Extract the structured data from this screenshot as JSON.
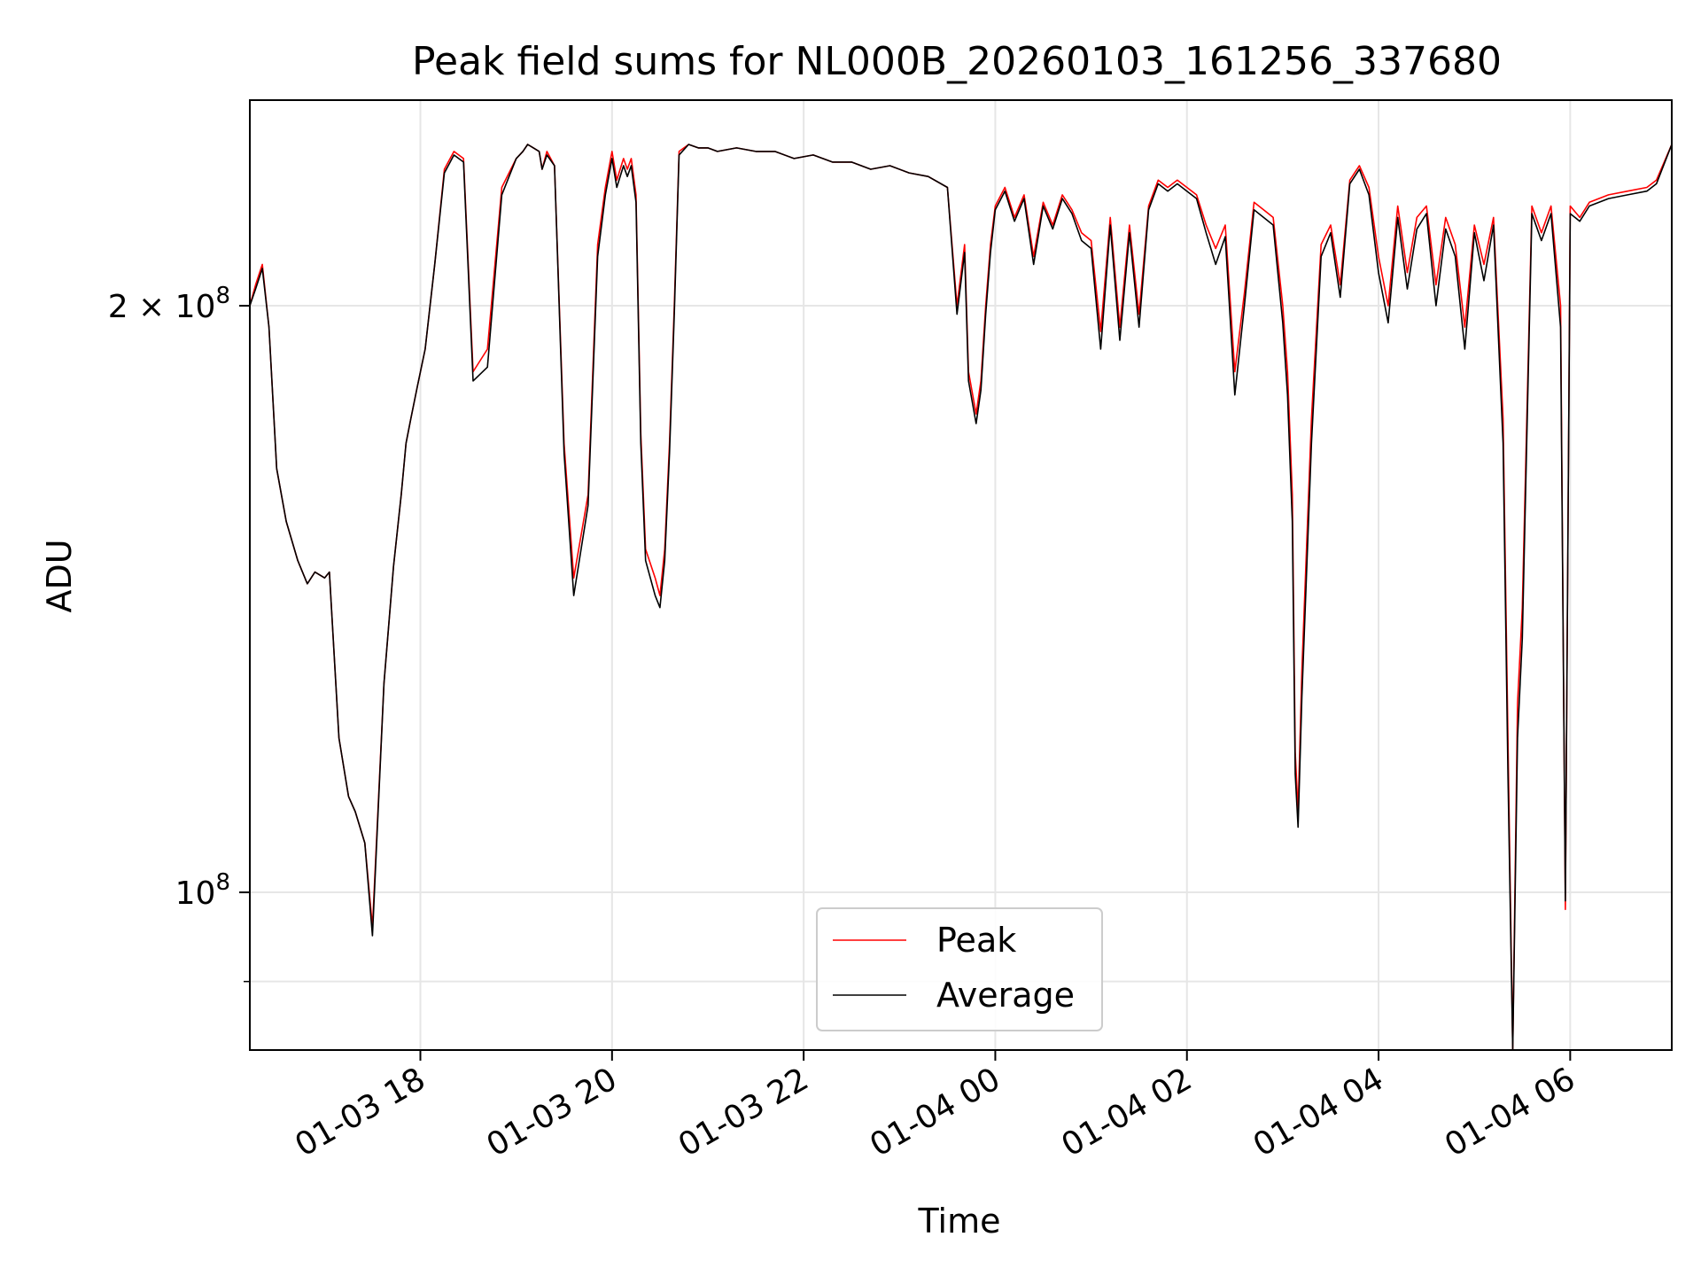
{
  "chart_data": {
    "type": "line",
    "title": "Peak field sums for NL000B_20260103_161256_337680",
    "xlabel": "Time",
    "ylabel": "ADU",
    "yscale": "log",
    "grid": true,
    "xlim": [
      16.22,
      31.06
    ],
    "ylim": [
      83000000,
      255000000
    ],
    "x_ticks": [
      {
        "value": 18,
        "label": "01-03 18"
      },
      {
        "value": 20,
        "label": "01-03 20"
      },
      {
        "value": 22,
        "label": "01-03 22"
      },
      {
        "value": 24,
        "label": "01-04 00"
      },
      {
        "value": 26,
        "label": "01-04 02"
      },
      {
        "value": 28,
        "label": "01-04 04"
      },
      {
        "value": 30,
        "label": "01-04 06"
      }
    ],
    "y_ticks": [
      {
        "value": 200000000,
        "label": "2×10^8",
        "base": "2 × 10",
        "exp": "8"
      },
      {
        "value": 100000000,
        "label": "10^8",
        "base": "10",
        "exp": "8"
      }
    ],
    "y_minor_ticks": [
      90000000
    ],
    "legend": {
      "position": "bottom-center",
      "entries": [
        "Peak",
        "Average"
      ]
    },
    "series": [
      {
        "name": "Peak",
        "color": "#ff0000",
        "x": [
          16.22,
          16.28,
          16.35,
          16.42,
          16.5,
          16.6,
          16.72,
          16.82,
          16.9,
          17.0,
          17.05,
          17.15,
          17.25,
          17.32,
          17.42,
          17.5,
          17.62,
          17.72,
          17.8,
          17.85,
          17.9,
          17.97,
          18.05,
          18.15,
          18.25,
          18.35,
          18.45,
          18.55,
          18.7,
          18.85,
          19.0,
          19.07,
          19.12,
          19.18,
          19.24,
          19.27,
          19.32,
          19.4,
          19.5,
          19.6,
          19.75,
          19.85,
          19.93,
          20.0,
          20.05,
          20.12,
          20.16,
          20.2,
          20.25,
          20.3,
          20.35,
          20.45,
          20.5,
          20.55,
          20.6,
          20.65,
          20.7,
          20.8,
          20.9,
          21.0,
          21.1,
          21.3,
          21.5,
          21.7,
          21.9,
          22.1,
          22.3,
          22.5,
          22.7,
          22.9,
          23.1,
          23.3,
          23.5,
          23.6,
          23.68,
          23.72,
          23.8,
          23.85,
          23.9,
          23.95,
          24.0,
          24.1,
          24.2,
          24.3,
          24.4,
          24.5,
          24.6,
          24.7,
          24.8,
          24.9,
          25.0,
          25.1,
          25.2,
          25.3,
          25.4,
          25.5,
          25.6,
          25.7,
          25.8,
          25.9,
          26.0,
          26.1,
          26.2,
          26.3,
          26.4,
          26.5,
          26.6,
          26.7,
          26.8,
          26.9,
          27.0,
          27.05,
          27.1,
          27.13,
          27.16,
          27.2,
          27.3,
          27.4,
          27.5,
          27.6,
          27.7,
          27.8,
          27.9,
          28.0,
          28.1,
          28.2,
          28.3,
          28.4,
          28.5,
          28.6,
          28.7,
          28.8,
          28.9,
          29.0,
          29.1,
          29.2,
          29.3,
          29.35,
          29.4,
          29.45,
          29.5,
          29.6,
          29.7,
          29.8,
          29.9,
          29.95,
          30.0,
          30.1,
          30.2,
          30.4,
          30.6,
          30.8,
          30.9,
          31.06
        ],
        "y": [
          200000000,
          205000000,
          210000000,
          195000000,
          165000000,
          155000000,
          148000000,
          144000000,
          146000000,
          145000000,
          146000000,
          120000000,
          112000000,
          110000000,
          106000000,
          96000000,
          128000000,
          147000000,
          160000000,
          170000000,
          175000000,
          182000000,
          190000000,
          210000000,
          235000000,
          240000000,
          238000000,
          185000000,
          190000000,
          230000000,
          238000000,
          240000000,
          242000000,
          241000000,
          240000000,
          235000000,
          240000000,
          236000000,
          170000000,
          145000000,
          160000000,
          215000000,
          230000000,
          240000000,
          232000000,
          238000000,
          235000000,
          238000000,
          228000000,
          172000000,
          150000000,
          145000000,
          142000000,
          150000000,
          170000000,
          200000000,
          240000000,
          242000000,
          241000000,
          241000000,
          240000000,
          241000000,
          240000000,
          240000000,
          238000000,
          239000000,
          237000000,
          237000000,
          235000000,
          236000000,
          234000000,
          233000000,
          230000000,
          200000000,
          215000000,
          185000000,
          176000000,
          183000000,
          200000000,
          215000000,
          225000000,
          230000000,
          222000000,
          228000000,
          212000000,
          226000000,
          220000000,
          228000000,
          224000000,
          218000000,
          216000000,
          194000000,
          222000000,
          195000000,
          220000000,
          198000000,
          225000000,
          232000000,
          230000000,
          232000000,
          230000000,
          228000000,
          220000000,
          214000000,
          220000000,
          185000000,
          203000000,
          226000000,
          224000000,
          222000000,
          200000000,
          185000000,
          160000000,
          118000000,
          110000000,
          130000000,
          175000000,
          215000000,
          220000000,
          205000000,
          232000000,
          236000000,
          230000000,
          212000000,
          200000000,
          225000000,
          208000000,
          222000000,
          225000000,
          205000000,
          222000000,
          215000000,
          195000000,
          220000000,
          210000000,
          222000000,
          175000000,
          120000000,
          83000000,
          125000000,
          140000000,
          225000000,
          218000000,
          225000000,
          200000000,
          98000000,
          225000000,
          222000000,
          226000000,
          228000000,
          229000000,
          230000000,
          232000000,
          242000000
        ]
      },
      {
        "name": "Average",
        "color": "#000000",
        "x": [
          16.22,
          16.28,
          16.35,
          16.42,
          16.5,
          16.6,
          16.72,
          16.82,
          16.9,
          17.0,
          17.05,
          17.15,
          17.25,
          17.32,
          17.42,
          17.5,
          17.62,
          17.72,
          17.8,
          17.85,
          17.9,
          17.97,
          18.05,
          18.15,
          18.25,
          18.35,
          18.45,
          18.55,
          18.7,
          18.85,
          19.0,
          19.07,
          19.12,
          19.18,
          19.24,
          19.27,
          19.32,
          19.4,
          19.5,
          19.6,
          19.75,
          19.85,
          19.93,
          20.0,
          20.05,
          20.12,
          20.16,
          20.2,
          20.25,
          20.3,
          20.35,
          20.45,
          20.5,
          20.55,
          20.6,
          20.65,
          20.7,
          20.8,
          20.9,
          21.0,
          21.1,
          21.3,
          21.5,
          21.7,
          21.9,
          22.1,
          22.3,
          22.5,
          22.7,
          22.9,
          23.1,
          23.3,
          23.5,
          23.6,
          23.68,
          23.72,
          23.8,
          23.85,
          23.9,
          23.95,
          24.0,
          24.1,
          24.2,
          24.3,
          24.4,
          24.5,
          24.6,
          24.7,
          24.8,
          24.9,
          25.0,
          25.1,
          25.2,
          25.3,
          25.4,
          25.5,
          25.6,
          25.7,
          25.8,
          25.9,
          26.0,
          26.1,
          26.2,
          26.3,
          26.4,
          26.5,
          26.6,
          26.7,
          26.8,
          26.9,
          27.0,
          27.05,
          27.1,
          27.13,
          27.16,
          27.2,
          27.3,
          27.4,
          27.5,
          27.6,
          27.7,
          27.8,
          27.9,
          28.0,
          28.1,
          28.2,
          28.3,
          28.4,
          28.5,
          28.6,
          28.7,
          28.8,
          28.9,
          29.0,
          29.1,
          29.2,
          29.3,
          29.35,
          29.4,
          29.45,
          29.5,
          29.6,
          29.7,
          29.8,
          29.9,
          29.95,
          30.0,
          30.1,
          30.2,
          30.4,
          30.6,
          30.8,
          30.9,
          31.06
        ],
        "y": [
          200000000,
          204000000,
          209000000,
          195000000,
          165000000,
          155000000,
          148000000,
          144000000,
          146000000,
          145000000,
          146000000,
          120000000,
          112000000,
          110000000,
          106000000,
          95000000,
          128000000,
          147000000,
          160000000,
          170000000,
          175000000,
          182000000,
          190000000,
          210000000,
          234000000,
          239000000,
          237000000,
          183000000,
          186000000,
          228000000,
          238000000,
          240000000,
          242000000,
          241000000,
          240000000,
          235000000,
          239000000,
          236000000,
          168000000,
          142000000,
          158000000,
          212000000,
          228000000,
          238000000,
          230000000,
          236000000,
          233000000,
          236000000,
          226000000,
          170000000,
          148000000,
          142000000,
          140000000,
          148000000,
          168000000,
          198000000,
          239000000,
          242000000,
          241000000,
          241000000,
          240000000,
          241000000,
          240000000,
          240000000,
          238000000,
          239000000,
          237000000,
          237000000,
          235000000,
          236000000,
          234000000,
          233000000,
          230000000,
          198000000,
          213000000,
          183000000,
          174000000,
          181000000,
          198000000,
          213000000,
          224000000,
          229000000,
          221000000,
          227000000,
          210000000,
          225000000,
          219000000,
          227000000,
          223000000,
          216000000,
          214000000,
          190000000,
          220000000,
          192000000,
          218000000,
          195000000,
          224000000,
          231000000,
          229000000,
          231000000,
          229000000,
          227000000,
          218000000,
          210000000,
          217000000,
          180000000,
          200000000,
          224000000,
          222000000,
          220000000,
          196000000,
          180000000,
          155000000,
          115000000,
          108000000,
          126000000,
          170000000,
          212000000,
          218000000,
          202000000,
          231000000,
          235000000,
          228000000,
          208000000,
          196000000,
          222000000,
          204000000,
          219000000,
          223000000,
          200000000,
          219000000,
          212000000,
          190000000,
          218000000,
          206000000,
          220000000,
          170000000,
          115000000,
          83000000,
          120000000,
          135000000,
          223000000,
          216000000,
          223000000,
          195000000,
          99000000,
          223000000,
          221000000,
          225000000,
          227000000,
          228000000,
          229000000,
          231000000,
          242000000
        ]
      }
    ]
  }
}
